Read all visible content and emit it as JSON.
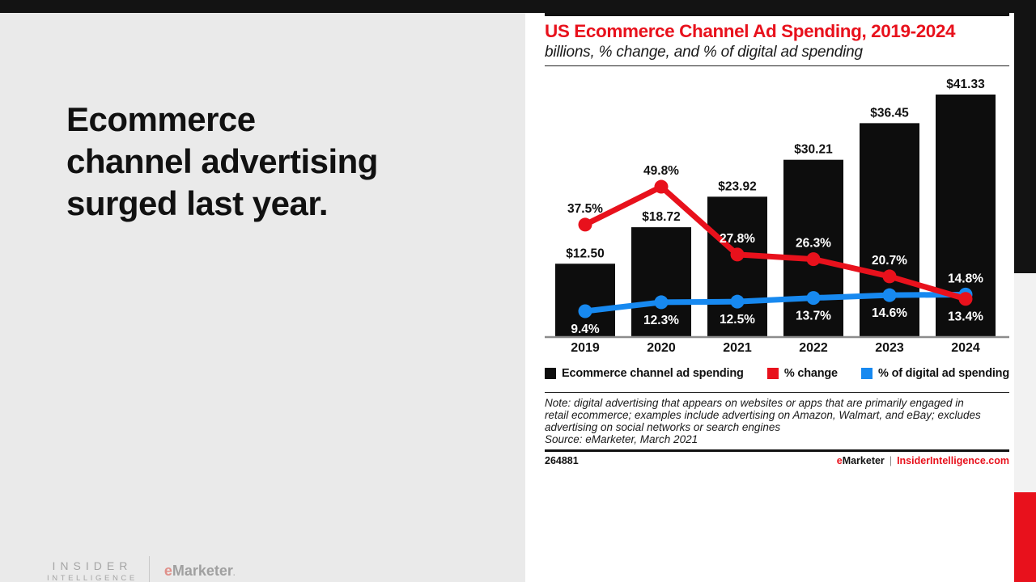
{
  "slide": {
    "headline_lines": [
      "Ecommerce",
      "channel advertising",
      "surged last year."
    ],
    "brand": {
      "insider_line1": "INSIDER",
      "insider_line2": "INTELLIGENCE",
      "emarketer_e": "e",
      "emarketer_rest": "Marketer",
      "emarketer_dot": "."
    }
  },
  "chart_panel": {
    "title": "US Ecommerce Channel Ad Spending, 2019-2024",
    "subtitle": "billions, % change, and % of digital ad spending",
    "note_lines": [
      "Note: digital advertising that appears on websites or apps that are primarily engaged in",
      "retail ecommerce; examples include advertising on Amazon, Walmart, and eBay; excludes",
      "advertising on social networks or search engines"
    ],
    "source": "Source: eMarketer, March 2021",
    "footer": {
      "chart_id": "264881",
      "brand_e": "e",
      "brand_rest": "Marketer",
      "pipe": "|",
      "site": "InsiderIntelligence.com"
    }
  },
  "chart_data": {
    "type": "bar+line combo",
    "title": "US Ecommerce Channel Ad Spending, 2019-2024",
    "subtitle": "billions, % change, and % of digital ad spending",
    "categories": [
      "2019",
      "2020",
      "2021",
      "2022",
      "2023",
      "2024"
    ],
    "series": [
      {
        "name": "Ecommerce channel ad spending",
        "type": "bar",
        "unit": "US$ billions",
        "values": [
          12.5,
          18.72,
          23.92,
          30.21,
          36.45,
          41.33
        ],
        "labels": [
          "$12.50",
          "$18.72",
          "$23.92",
          "$30.21",
          "$36.45",
          "$41.33"
        ],
        "color": "#0d0d0d"
      },
      {
        "name": "% change",
        "type": "line",
        "unit": "%",
        "values": [
          37.5,
          49.8,
          27.8,
          26.3,
          20.7,
          13.4
        ],
        "labels": [
          "37.5%",
          "49.8%",
          "27.8%",
          "26.3%",
          "20.7%",
          "13.4%"
        ],
        "color": "#e8111c"
      },
      {
        "name": "% of digital ad spending",
        "type": "line",
        "unit": "%",
        "values": [
          9.4,
          12.3,
          12.5,
          13.7,
          14.6,
          14.8
        ],
        "labels": [
          "9.4%",
          "12.3%",
          "12.5%",
          "13.7%",
          "14.6%",
          "14.8%"
        ],
        "color": "#1789f0"
      }
    ],
    "legend_position": "bottom",
    "gridlines": false,
    "y_axis_shown": false
  },
  "colors": {
    "accent_red": "#e8111c",
    "accent_blue": "#1789f0",
    "bar_black": "#0d0d0d",
    "axis_gray": "#8c8c8c",
    "left_panel_gray": "#eaeaea",
    "strip_gray": "#f2f2f2",
    "top_bar_black": "#131313"
  }
}
